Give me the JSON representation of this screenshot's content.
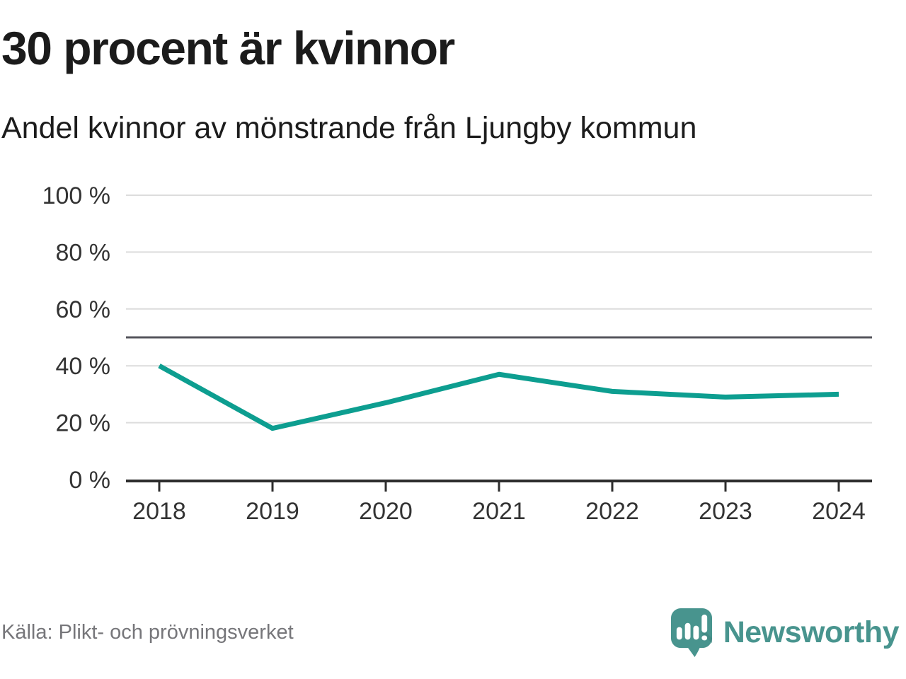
{
  "header": {
    "title": "30 procent är kvinnor",
    "subtitle": "Andel kvinnor av mönstrande från Ljungby kommun"
  },
  "chart_data": {
    "type": "line",
    "x": [
      2018,
      2019,
      2020,
      2021,
      2022,
      2023,
      2024
    ],
    "xtick_labels": [
      "2018",
      "2019",
      "2020",
      "2021",
      "2022",
      "2023",
      "2024"
    ],
    "series": [
      {
        "name": "Andel kvinnor av mönstrande",
        "values": [
          40,
          18,
          27,
          37,
          31,
          29,
          30
        ]
      }
    ],
    "unit": "%",
    "ylim": [
      0,
      100
    ],
    "yticks": [
      0,
      20,
      40,
      60,
      80,
      100
    ],
    "ytick_labels": [
      "0 %",
      "20 %",
      "40 %",
      "60 %",
      "80 %",
      "100 %"
    ],
    "reference_line": {
      "value": 50
    },
    "grid": "horizontal",
    "legend": "none",
    "colors": {
      "line": "#0d9e90",
      "reference_line": "#55555c",
      "grid": "#dcdcdc",
      "axis": "#2d2d2d",
      "tick_label": "#333333"
    }
  },
  "footer": {
    "source": "Källa: Plikt- och prövningsverket",
    "brand": "Newsworthy",
    "brand_color": "#48948e"
  }
}
